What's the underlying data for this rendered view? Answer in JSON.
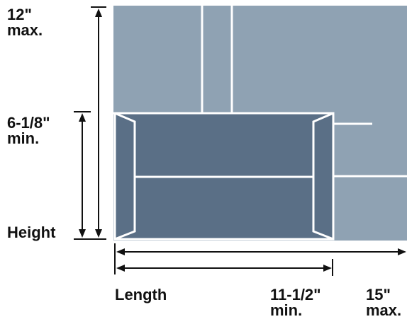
{
  "labels": {
    "height_max_value": "12\"",
    "height_max_qualifier": "max.",
    "height_min_value": "6-1/8\"",
    "height_min_qualifier": "min.",
    "height": "Height",
    "length": "Length",
    "length_min_value": "11-1/2\"",
    "length_min_qualifier": "min.",
    "length_max_value": "15\"",
    "length_max_qualifier": "max."
  },
  "colors": {
    "max_envelope": "#8fa2b3",
    "min_envelope": "#5a6f86",
    "edge_lines": "#ffffff",
    "dimension_lines": "#111111"
  }
}
